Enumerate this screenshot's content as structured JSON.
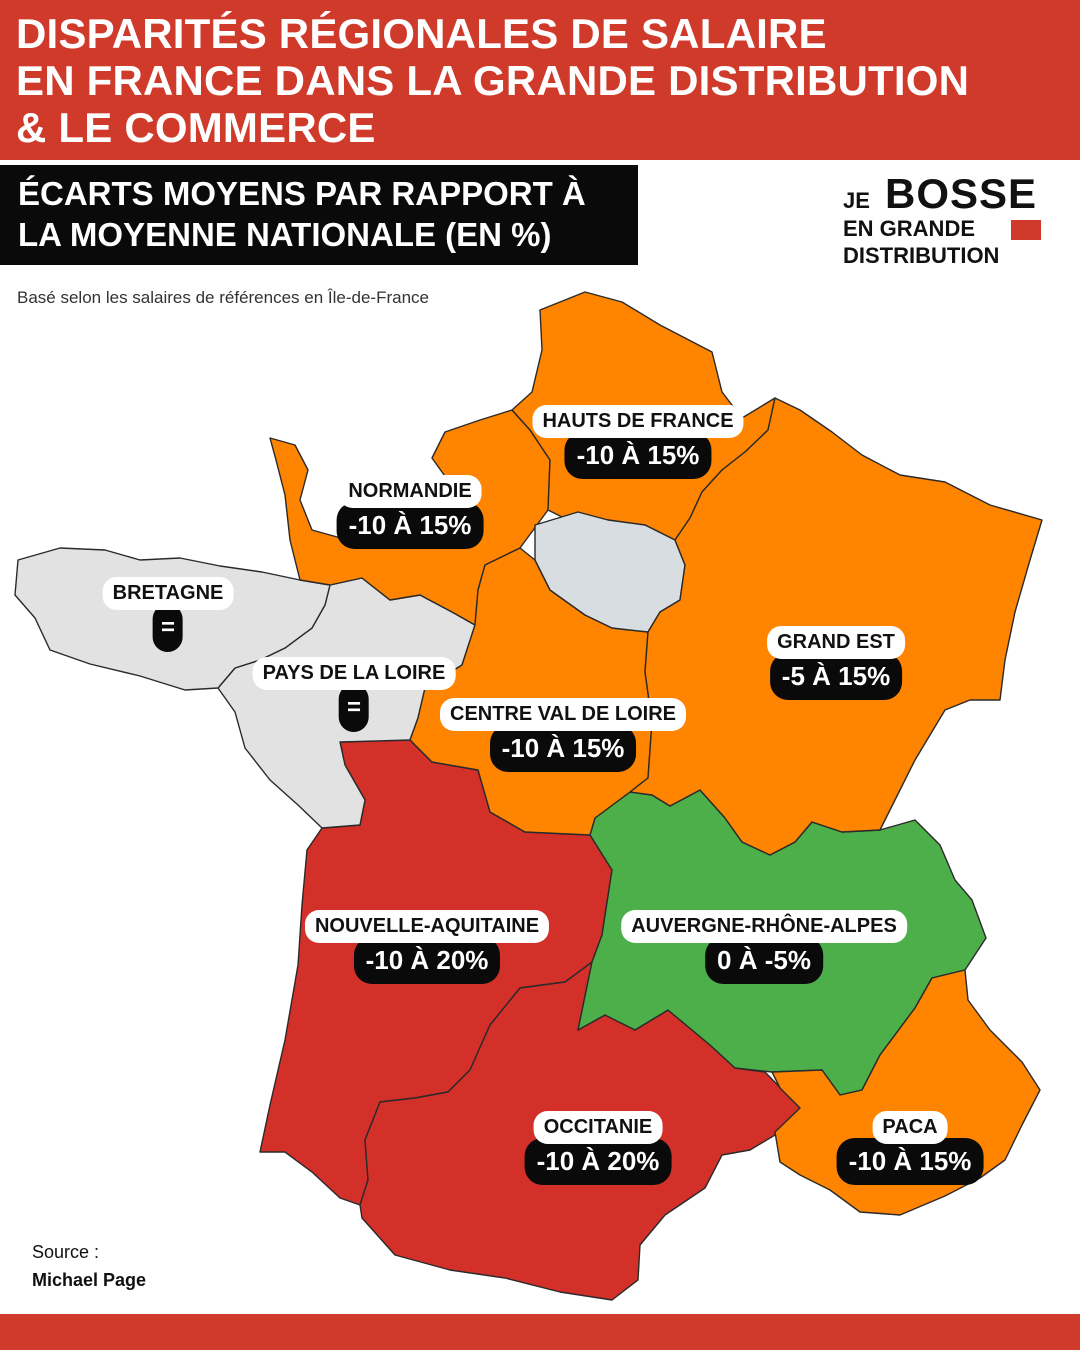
{
  "title": {
    "line1": "DISPARITÉS RÉGIONALES DE SALAIRE",
    "line2": "EN FRANCE DANS LA GRANDE DISTRIBUTION",
    "line3": "& LE COMMERCE"
  },
  "subtitle": {
    "line1": "ÉCARTS MOYENS PAR RAPPORT À",
    "line2": "LA MOYENNE NATIONALE (EN %)"
  },
  "brand": {
    "je": "JE",
    "bosse": "BOSSE",
    "line2": "EN GRANDE",
    "line3": "DISTRIBUTION"
  },
  "note": "Basé selon les salaires de références en Île-de-France",
  "colors": {
    "banner": "#d03a2b",
    "orange": "#ff8400",
    "red": "#d3302a",
    "green": "#4caf4a",
    "grey": "#e2e2e2",
    "idf": "#d7dde0"
  },
  "regions": {
    "hauts_de_france": {
      "name": "HAUTS DE FRANCE",
      "value": "-10 À 15%"
    },
    "normandie": {
      "name": "NORMANDIE",
      "value": "-10 À 15%"
    },
    "bretagne": {
      "name": "BRETAGNE",
      "value": "="
    },
    "pays_de_la_loire": {
      "name": "PAYS DE LA LOIRE",
      "value": "="
    },
    "grand_est": {
      "name": "GRAND EST",
      "value": "-5 À 15%"
    },
    "centre_val_de_loire": {
      "name": "CENTRE VAL DE LOIRE",
      "value": "-10 À 15%"
    },
    "nouvelle_aquitaine": {
      "name": "NOUVELLE-AQUITAINE",
      "value": "-10 À 20%"
    },
    "auvergne_rhone_alpes": {
      "name": "AUVERGNE-RHÔNE-ALPES",
      "value": "0 À -5%"
    },
    "occitanie": {
      "name": "OCCITANIE",
      "value": "-10 À 20%"
    },
    "paca": {
      "name": "PACA",
      "value": "-10 À 15%"
    }
  },
  "source": {
    "label": "Source :",
    "name": "Michael Page"
  }
}
